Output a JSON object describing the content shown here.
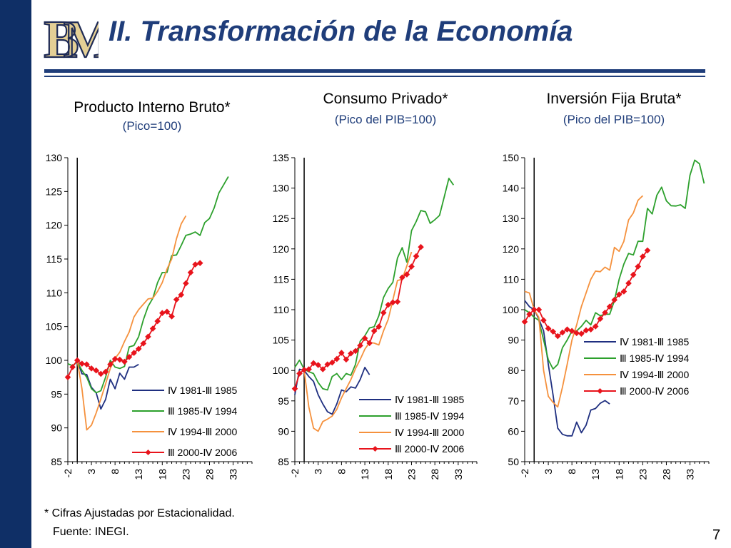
{
  "slide": {
    "title": "II. Transformación de la Economía",
    "footnote": "* Cifras Ajustadas por Estacionalidad.",
    "source": "Fuente: INEGI.",
    "page_number": "7",
    "logo_text": "BM"
  },
  "colors": {
    "accent": "#1f3d7a",
    "sidebar": "#0f2f66",
    "series": [
      "#1f2f80",
      "#2ca02c",
      "#f5913d",
      "#e8141c"
    ]
  },
  "chart_data": [
    {
      "type": "line",
      "title": "Producto Interno Bruto*",
      "subtitle": "(Pico=100)",
      "x_ticks": [
        -2,
        3,
        8,
        13,
        18,
        23,
        28,
        33
      ],
      "xlim": [
        -2,
        37
      ],
      "ylim": [
        85,
        130
      ],
      "y_ticks": [
        85,
        90,
        95,
        100,
        105,
        110,
        115,
        120,
        125,
        130
      ],
      "vline_x": 0,
      "legend_position": "bottom-right",
      "grid": false,
      "series": [
        {
          "name": "Ⅳ 1981-Ⅲ 1985",
          "x0": 0,
          "values": [
            100,
            98,
            97.9,
            96,
            95.2,
            92.8,
            94.2,
            97.2,
            95.8,
            98.1,
            97.2,
            99,
            99,
            99.4
          ]
        },
        {
          "name": "Ⅲ 1985-Ⅳ 1994",
          "x0": -2,
          "values": [
            99.5,
            99.2,
            99.8,
            98.5,
            97.5,
            95.8,
            95.2,
            95.5,
            97.5,
            100,
            99,
            98.8,
            99.1,
            102,
            102.2,
            103.5,
            106,
            108,
            109.2,
            111.5,
            113,
            113,
            115.5,
            115.6,
            117,
            118.5,
            118.7,
            119,
            118.5,
            120.4,
            121,
            122.6,
            124.8,
            126,
            127.2
          ]
        },
        {
          "name": "Ⅳ 1994-Ⅲ 2000",
          "x0": 0,
          "values": [
            100,
            95.8,
            89.7,
            90.4,
            92.2,
            94.3,
            96.5,
            98.8,
            100.3,
            101.2,
            102.8,
            104.2,
            106.4,
            107.5,
            108.3,
            109.1,
            109.2,
            110.2,
            111.5,
            113.5,
            115,
            118,
            120.2,
            121.4
          ]
        },
        {
          "name": "Ⅲ 2000-Ⅳ 2006",
          "x0": -2,
          "markers": true,
          "values": [
            97.5,
            99,
            100,
            99.5,
            99.4,
            98.8,
            98.5,
            98,
            98.3,
            99.4,
            100.2,
            100.1,
            99.8,
            100.5,
            101.1,
            101.7,
            102.5,
            103.5,
            104.7,
            105.8,
            107,
            107.2,
            106.5,
            109,
            109.7,
            111.4,
            113,
            114.2,
            114.4
          ]
        }
      ]
    },
    {
      "type": "line",
      "title": "Consumo Privado*",
      "subtitle": "(Pico del PIB=100)",
      "x_ticks": [
        -2,
        3,
        8,
        13,
        18,
        23,
        28,
        33
      ],
      "xlim": [
        -2,
        37
      ],
      "ylim": [
        85,
        135
      ],
      "y_ticks": [
        85,
        90,
        95,
        100,
        105,
        110,
        115,
        120,
        125,
        130,
        135
      ],
      "vline_x": 0,
      "legend_position": "bottom-right",
      "grid": false,
      "series": [
        {
          "name": "Ⅳ 1981-Ⅲ 1985",
          "x0": -2,
          "values": [
            96,
            100.2,
            100,
            99,
            98.2,
            96,
            94.5,
            93.2,
            92.8,
            94.5,
            96.8,
            96.5,
            97.3,
            97.1,
            98.5,
            100.5,
            99.3
          ]
        },
        {
          "name": "Ⅲ 1985-Ⅳ 1994",
          "x0": -2,
          "values": [
            100.5,
            101.7,
            100.2,
            99.8,
            99.5,
            98,
            97,
            96.8,
            99,
            99.5,
            98.5,
            99.5,
            99.2,
            101,
            104.8,
            105.7,
            107,
            107.2,
            109,
            112,
            113.5,
            114.5,
            118.5,
            120.2,
            117.8,
            123,
            124.5,
            126.3,
            126.1,
            124.2,
            124.8,
            125.5,
            128.5,
            131.6,
            130.5
          ]
        },
        {
          "name": "Ⅳ 1994-Ⅲ 2000",
          "x0": 0,
          "values": [
            100,
            94,
            90.5,
            90,
            91.6,
            92,
            92.5,
            93.6,
            95.5,
            97,
            98.5,
            100.3,
            101.8,
            103.5,
            104.6,
            104.5,
            104.2,
            106.5,
            108.4,
            111.6,
            114.8,
            115,
            117.2,
            119.5
          ]
        },
        {
          "name": "Ⅲ 2000-Ⅳ 2006",
          "x0": -2,
          "markers": true,
          "values": [
            97,
            99.5,
            100.1,
            100.2,
            101.2,
            100.9,
            100.2,
            101,
            101.3,
            101.9,
            102.9,
            101.8,
            102.8,
            103.2,
            104.1,
            105.3,
            104.5,
            106.5,
            107.2,
            109.5,
            110.8,
            111.2,
            111.3,
            115.3,
            115.8,
            117.1,
            118.8,
            120.3
          ]
        }
      ]
    },
    {
      "type": "line",
      "title": "Inversión Fija Bruta*",
      "subtitle": "(Pico del PIB=100)",
      "x_ticks": [
        -2,
        3,
        8,
        13,
        18,
        23,
        28,
        33
      ],
      "xlim": [
        -2,
        37
      ],
      "ylim": [
        50,
        150
      ],
      "y_ticks": [
        50,
        60,
        70,
        80,
        90,
        100,
        110,
        120,
        130,
        140,
        150
      ],
      "vline_x": 0,
      "legend_position": "center-right",
      "grid": false,
      "series": [
        {
          "name": "Ⅳ 1981-Ⅲ 1985",
          "x0": -2,
          "values": [
            103,
            101,
            100,
            97,
            93,
            82,
            72,
            61,
            59,
            58.5,
            58.5,
            63,
            59.5,
            62,
            67,
            67.5,
            69.2,
            70.1,
            69
          ]
        },
        {
          "name": "Ⅲ 1985-Ⅳ 1994",
          "x0": -2,
          "values": [
            100,
            99,
            97.5,
            96.5,
            90,
            83.5,
            80.5,
            82,
            87.5,
            90,
            93,
            93,
            94.5,
            96.5,
            95,
            99,
            98,
            98.5,
            98.5,
            103,
            110,
            115,
            118.5,
            118,
            122.5,
            122.5,
            133.3,
            131.5,
            137.7,
            140.3,
            135.8,
            134.2,
            134.1,
            134.5,
            133.3,
            144.2,
            149.2,
            148,
            141.5
          ]
        },
        {
          "name": "Ⅳ 1994-Ⅲ 2000",
          "x0": -2,
          "values": [
            106,
            105.5,
            100,
            97.5,
            80,
            71.5,
            69.5,
            68,
            74.5,
            82,
            90,
            95,
            101,
            105.5,
            110,
            112.7,
            112.5,
            114,
            113,
            120.5,
            119.2,
            122.5,
            129.5,
            131.8,
            136,
            137.5
          ]
        },
        {
          "name": "Ⅲ 2000-Ⅳ 2006",
          "x0": -2,
          "markers": true,
          "values": [
            96,
            98.5,
            100,
            100,
            96.5,
            93.8,
            92.8,
            91.3,
            92.5,
            93.5,
            93,
            92.3,
            92.1,
            93.2,
            93.5,
            94.5,
            97,
            99,
            101,
            103.2,
            105,
            106,
            108.7,
            111.5,
            114.2,
            117.5,
            119.5
          ]
        }
      ]
    }
  ]
}
